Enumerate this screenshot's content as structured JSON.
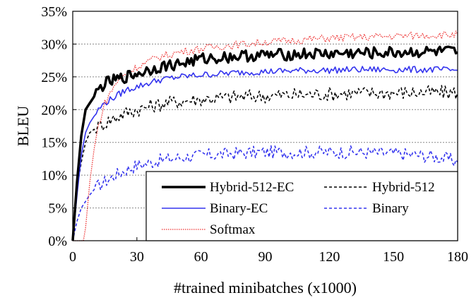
{
  "chart_data": {
    "type": "line",
    "title": "",
    "xlabel": "#trained minibatches (x1000)",
    "ylabel": "BLEU",
    "xlim": [
      0,
      180
    ],
    "ylim": [
      0,
      35
    ],
    "x_ticks": [
      "0",
      "30",
      "60",
      "90",
      "120",
      "150",
      "180"
    ],
    "y_ticks": [
      "0%",
      "5%",
      "10%",
      "15%",
      "20%",
      "25%",
      "30%",
      "35%"
    ],
    "grid": "horizontal-dotted",
    "legend": "bottom-right",
    "series": [
      {
        "name": "Hybrid-512-EC",
        "color": "#000000",
        "style": "solid-thick",
        "x": [
          0,
          2,
          4,
          6,
          8,
          10,
          12,
          15,
          20,
          25,
          30,
          40,
          50,
          60,
          70,
          80,
          90,
          100,
          110,
          120,
          130,
          140,
          150,
          160,
          170,
          175,
          180
        ],
        "y": [
          0,
          9,
          16,
          20,
          21,
          22,
          23,
          24,
          24.5,
          25,
          25.5,
          26.5,
          27,
          27.7,
          28,
          28.2,
          28.3,
          28.4,
          28.5,
          28.5,
          28.6,
          28.6,
          28.7,
          28.8,
          28.8,
          28.8,
          28.7
        ]
      },
      {
        "name": "Hybrid-512",
        "color": "#000000",
        "style": "dashed",
        "x": [
          0,
          2,
          4,
          6,
          8,
          10,
          12,
          15,
          20,
          25,
          30,
          40,
          50,
          60,
          70,
          80,
          90,
          100,
          110,
          120,
          130,
          140,
          150,
          160,
          170,
          175,
          180
        ],
        "y": [
          0,
          8,
          12,
          15,
          16.5,
          17,
          17.5,
          18,
          18.8,
          19.5,
          20,
          20.8,
          21.3,
          21.6,
          21.8,
          22,
          22.1,
          22.2,
          22.3,
          22.4,
          22.5,
          22.5,
          22.6,
          22.6,
          22.6,
          22.6,
          22.6
        ]
      },
      {
        "name": "Binary-EC",
        "color": "#3333ee",
        "style": "solid",
        "x": [
          0,
          2,
          4,
          6,
          8,
          10,
          12,
          15,
          20,
          25,
          30,
          40,
          50,
          60,
          70,
          80,
          90,
          100,
          110,
          120,
          130,
          140,
          150,
          160,
          170,
          175,
          180
        ],
        "y": [
          0,
          7,
          13,
          16.5,
          18,
          19,
          20,
          21,
          22,
          23,
          23.5,
          24.5,
          25,
          25.3,
          25.5,
          25.7,
          25.8,
          25.9,
          26,
          26,
          26.1,
          26.1,
          26.1,
          26.1,
          26.1,
          26,
          26
        ]
      },
      {
        "name": "Binary",
        "color": "#3333ee",
        "style": "dashed",
        "x": [
          0,
          2,
          4,
          6,
          8,
          10,
          12,
          15,
          20,
          25,
          30,
          40,
          50,
          60,
          70,
          80,
          90,
          100,
          110,
          120,
          130,
          140,
          150,
          160,
          170,
          175,
          180
        ],
        "y": [
          0,
          3,
          5,
          6,
          7,
          7.8,
          8.4,
          9,
          10,
          10.8,
          11.5,
          12.2,
          12.7,
          13,
          13.2,
          13.4,
          13.5,
          13.5,
          13.5,
          13.5,
          13.5,
          13.4,
          13.3,
          13.1,
          12.8,
          12.5,
          12
        ]
      },
      {
        "name": "Softmax",
        "color": "#ee3333",
        "style": "dotted",
        "x": [
          0,
          4,
          5,
          6,
          8,
          10,
          12,
          15,
          20,
          25,
          30,
          40,
          50,
          60,
          70,
          80,
          90,
          100,
          110,
          120,
          130,
          140,
          150,
          160,
          170,
          175,
          180
        ],
        "y": [
          0,
          0,
          0,
          2,
          9,
          14,
          17.5,
          21,
          24,
          25.5,
          26.5,
          28,
          28.8,
          29.3,
          29.7,
          30,
          30.3,
          30.5,
          30.7,
          30.9,
          31,
          31.1,
          31.2,
          31.3,
          31.4,
          31.4,
          31.4
        ]
      }
    ]
  }
}
